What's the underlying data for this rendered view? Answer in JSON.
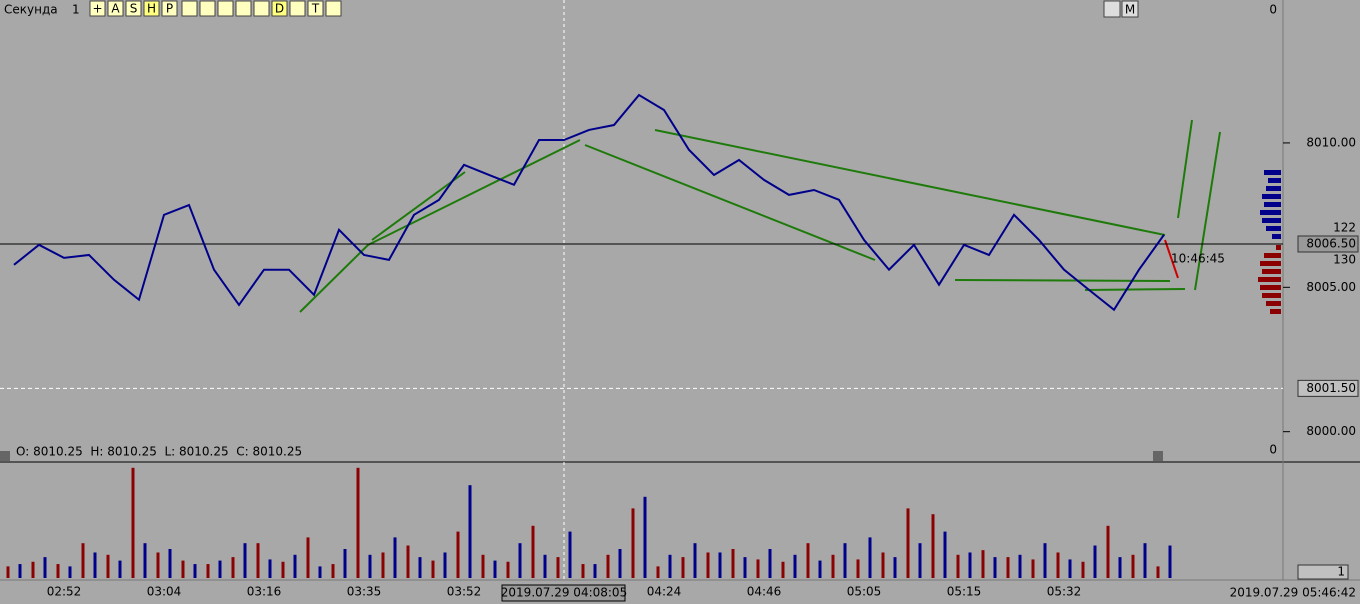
{
  "chart_data": [
    {
      "type": "line",
      "timeframe": "Секунда",
      "period": "1",
      "toolbar": [
        "+",
        "A",
        "S",
        "H",
        "P",
        "D",
        "M",
        "T"
      ],
      "top_label": "0",
      "bottom_label": "0",
      "ohlc_text": "O: 8010.25  H: 8010.25  L: 8010.25  C: 8010.25",
      "countdown": "10:46:45",
      "profile_up": "122",
      "profile_down": "130",
      "price_lines": [
        {
          "value": 8006.5,
          "label": "8006.50"
        },
        {
          "value": 8001.5,
          "label": "8001.50"
        }
      ],
      "categories": [
        null,
        null,
        "02:52",
        null,
        null,
        null,
        "03:04",
        null,
        null,
        null,
        "03:16",
        null,
        null,
        null,
        "03:35",
        null,
        null,
        null,
        "03:52",
        null,
        null,
        null,
        null,
        null,
        null,
        null,
        "04:24",
        null,
        null,
        null,
        "04:46",
        null,
        null,
        null,
        "05:05",
        null,
        null,
        null,
        "05:15",
        null,
        null,
        null,
        "05:32",
        null,
        null,
        null,
        null
      ],
      "cursor_time": "2019.07.29 04:08:05",
      "last_time": "2019.07.29 05:46:42",
      "series": [
        {
          "color": "#00008b",
          "values": [
            8005.78,
            8006.47,
            8006.02,
            8006.12,
            8005.26,
            8004.57,
            8007.51,
            8007.85,
            8005.61,
            8004.39,
            8005.61,
            8005.61,
            8004.74,
            8006.99,
            8006.12,
            8005.95,
            8007.51,
            8008.03,
            8009.24,
            8008.89,
            8008.55,
            8010.1,
            8010.1,
            8010.45,
            8010.62,
            8011.66,
            8011.14,
            8009.76,
            8008.89,
            8009.41,
            8008.72,
            8008.2,
            8008.37,
            8008.03,
            8006.64,
            8005.61,
            8006.47,
            8005.09,
            8006.47,
            8006.12,
            8007.51,
            8006.64,
            8005.61,
            8004.91,
            8004.22,
            8005.61,
            8006.82
          ]
        }
      ],
      "ylim": [
        7998.95,
        8014.95
      ],
      "yticks": [
        {
          "value": 8000,
          "label": "8000.00"
        },
        {
          "value": 8005,
          "label": "8005.00"
        },
        {
          "value": 8010,
          "label": "8010.00"
        }
      ]
    },
    {
      "type": "bar",
      "axis_label": "1",
      "series": [
        {
          "color": "#8b0000",
          "values": [
            10,
            14,
            12,
            30,
            20,
            95,
            22,
            15,
            12,
            18,
            30,
            14,
            35,
            12,
            95,
            22,
            28,
            15,
            40,
            20,
            14,
            45,
            18,
            12,
            20,
            60,
            10,
            18,
            22,
            25,
            16,
            14,
            30,
            20,
            16,
            22,
            60,
            55,
            20,
            24,
            18,
            16,
            22,
            14,
            45,
            20,
            10
          ]
        },
        {
          "color": "#00008b",
          "values": [
            12,
            18,
            10,
            22,
            15,
            30,
            25,
            12,
            15,
            30,
            16,
            20,
            10,
            25,
            20,
            35,
            18,
            22,
            80,
            15,
            30,
            20,
            40,
            12,
            25,
            70,
            20,
            30,
            22,
            18,
            25,
            20,
            15,
            30,
            35,
            18,
            30,
            40,
            22,
            18,
            20,
            30,
            16,
            28,
            18,
            30,
            28
          ]
        }
      ],
      "ylim": [
        0,
        100
      ]
    }
  ]
}
